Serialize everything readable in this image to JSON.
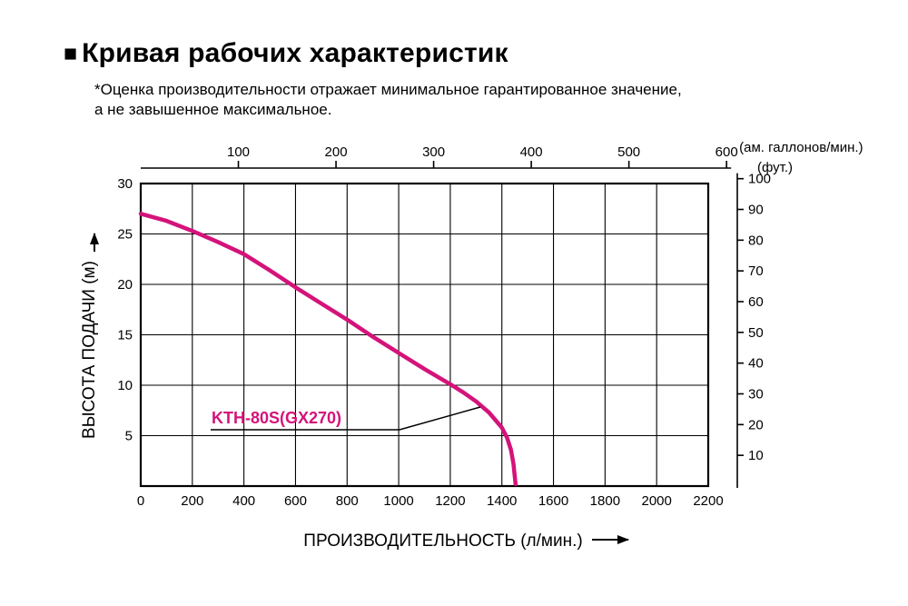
{
  "page": {
    "title_bullet": "■",
    "title": "Кривая рабочих характеристик",
    "subtitle_line1": "*Оценка производительности отражает минимальное гарантированное значение,",
    "subtitle_line2": "а не завышенное максимальное."
  },
  "chart_data": {
    "type": "line",
    "title": "Кривая рабочих характеристик",
    "xlabel": "ПРОИЗВОДИТЕЛЬНОСТЬ (л/мин.)",
    "ylabel": "ВЫСОТА ПОДАЧИ (м)",
    "top_axis_label": "(ам. галлонов/мин.)",
    "right_axis_label": "(фут.)",
    "xlim": [
      0,
      2200
    ],
    "ylim": [
      0,
      30
    ],
    "grid": true,
    "x_ticks": [
      0,
      200,
      400,
      600,
      800,
      1000,
      1200,
      1400,
      1600,
      1800,
      2000,
      2200
    ],
    "y_ticks": [
      5,
      10,
      15,
      20,
      25,
      30
    ],
    "top_ticks_gallons": [
      100,
      200,
      300,
      400,
      500,
      600
    ],
    "right_ticks_feet": [
      10,
      20,
      30,
      40,
      50,
      60,
      70,
      80,
      90,
      100
    ],
    "liters_per_us_gallon": 3.785,
    "meters_per_foot": 0.3048,
    "series": [
      {
        "name": "KTH-80S(GX270)",
        "color": "#d4137a",
        "points": [
          [
            0,
            27.0
          ],
          [
            100,
            26.3
          ],
          [
            200,
            25.3
          ],
          [
            300,
            24.2
          ],
          [
            400,
            23.0
          ],
          [
            500,
            21.4
          ],
          [
            600,
            19.7
          ],
          [
            700,
            18.1
          ],
          [
            800,
            16.5
          ],
          [
            900,
            14.8
          ],
          [
            1000,
            13.2
          ],
          [
            1100,
            11.6
          ],
          [
            1200,
            10.1
          ],
          [
            1250,
            9.3
          ],
          [
            1300,
            8.4
          ],
          [
            1350,
            7.3
          ],
          [
            1400,
            5.8
          ],
          [
            1420,
            4.8
          ],
          [
            1435,
            3.6
          ],
          [
            1445,
            2.2
          ],
          [
            1453,
            0.2
          ]
        ]
      }
    ],
    "annotation": {
      "text": "KTH-80S(GX270)",
      "color": "#d4137a"
    }
  }
}
